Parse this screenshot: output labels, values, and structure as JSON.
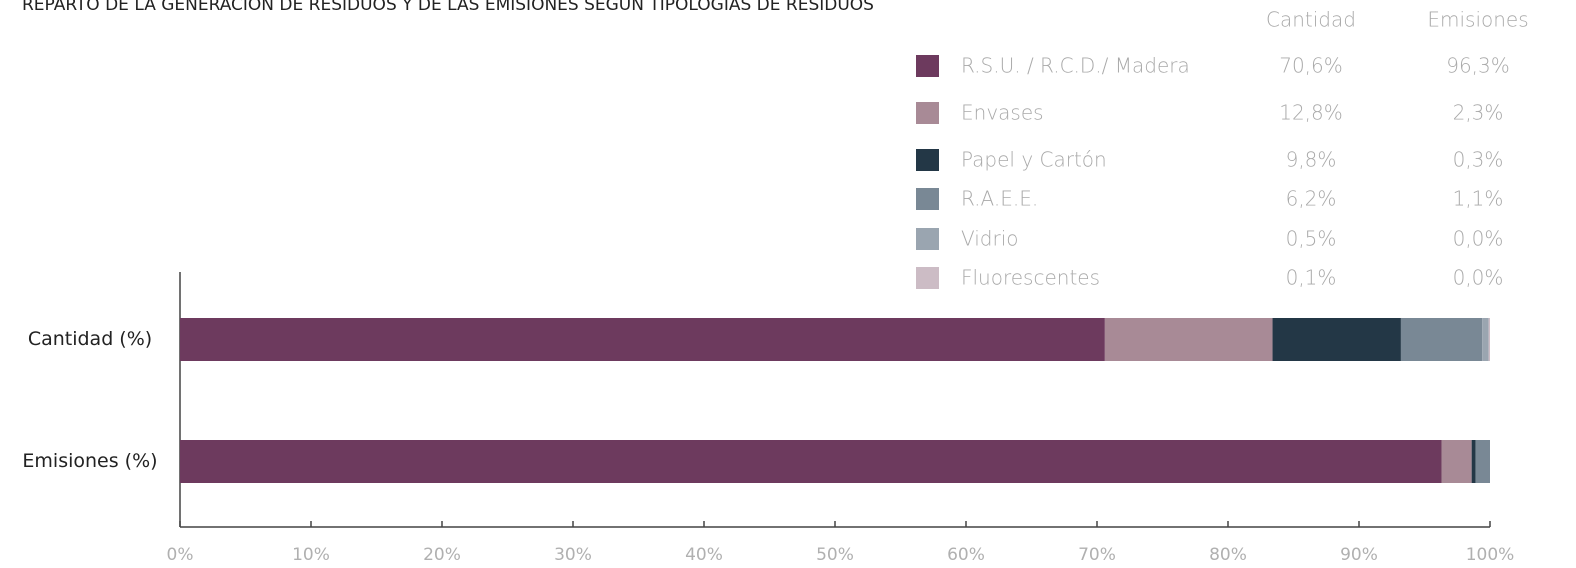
{
  "chart_data": {
    "type": "stacked_bar_horizontal",
    "title": "REPARTO DE LA GENERACIÓN DE RESIDUOS Y DE LAS EMISIONES SEGÚN TIPOLOGÍAS DE RESIDUOS",
    "categories": [
      "Cantidad (%)",
      "Emisiones (%)"
    ],
    "legend_columns": [
      "Cantidad",
      "Emisiones"
    ],
    "series": [
      {
        "name": "R.S.U. / R.C.D./ Madera",
        "color": "#6d3a5e",
        "values": [
          70.6,
          96.3
        ],
        "value_labels": [
          "70,6%",
          "96,3%"
        ]
      },
      {
        "name": "Envases",
        "color": "#a88a96",
        "values": [
          12.8,
          2.3
        ],
        "value_labels": [
          "12,8%",
          "2,3%"
        ]
      },
      {
        "name": "Papel y Cartón",
        "color": "#233746",
        "values": [
          9.8,
          0.3
        ],
        "value_labels": [
          "9,8%",
          "0,3%"
        ]
      },
      {
        "name": "R.A.E.E.",
        "color": "#798895",
        "values": [
          6.2,
          1.1
        ],
        "value_labels": [
          "6,2%",
          "1,1%"
        ]
      },
      {
        "name": "Vidrio",
        "color": "#9aa5b0",
        "values": [
          0.5,
          0.0
        ],
        "value_labels": [
          "0,5%",
          "0,0%"
        ]
      },
      {
        "name": "Fluorescentes",
        "color": "#ccbcc5",
        "values": [
          0.1,
          0.0
        ],
        "value_labels": [
          "0,1%",
          "0,0%"
        ]
      }
    ],
    "xlim": [
      0,
      100
    ],
    "xticks": [
      {
        "value": 0,
        "label": "0%"
      },
      {
        "value": 10,
        "label": "10%"
      },
      {
        "value": 20,
        "label": "20%"
      },
      {
        "value": 30,
        "label": "30%"
      },
      {
        "value": 40,
        "label": "40%"
      },
      {
        "value": 50,
        "label": "50%"
      },
      {
        "value": 60,
        "label": "60%"
      },
      {
        "value": 70,
        "label": "70%"
      },
      {
        "value": 80,
        "label": "80%"
      },
      {
        "value": 90,
        "label": "90%"
      },
      {
        "value": 100,
        "label": "100%"
      }
    ]
  }
}
